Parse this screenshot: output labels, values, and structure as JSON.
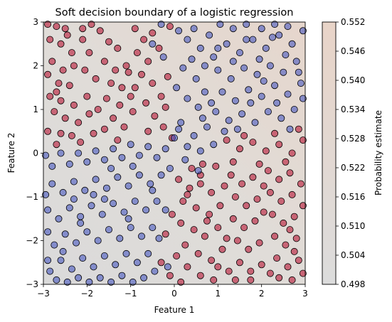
{
  "chart_data": {
    "type": "scatter",
    "title": "Soft decision boundary of a logistic regression",
    "xlabel": "Feature 1",
    "ylabel": "Feature 2",
    "xlim": [
      -3,
      3
    ],
    "ylim": [
      -3,
      3
    ],
    "xticks": [
      -3,
      -2,
      -1,
      0,
      1,
      2,
      3
    ],
    "xtick_labels": [
      "−3",
      "−2",
      "−1",
      "0",
      "1",
      "2",
      "3"
    ],
    "yticks": [
      -3,
      -2,
      -1,
      0,
      1,
      2,
      3
    ],
    "ytick_labels": [
      "−3",
      "−2",
      "−1",
      "0",
      "1",
      "2",
      "3"
    ],
    "grid": false,
    "background": {
      "type": "probability-gradient",
      "low_color": "#dcdcdc",
      "high_color": "#e8d4c8",
      "pmin": 0.498,
      "pmax": 0.552
    },
    "colorbar": {
      "label": "Probability estimate",
      "min": 0.498,
      "max": 0.552,
      "ticks": [
        0.498,
        0.504,
        0.51,
        0.516,
        0.522,
        0.528,
        0.534,
        0.54,
        0.546,
        0.552
      ],
      "tick_labels": [
        "0.498",
        "0.504",
        "0.510",
        "0.516",
        "0.522",
        "0.528",
        "0.534",
        "0.540",
        "0.546",
        "0.552"
      ]
    },
    "classes": [
      {
        "color": "#b40426",
        "edge_color": "#000000"
      },
      {
        "color": "#3b4cc0",
        "edge_color": "#000000"
      }
    ],
    "points": [
      [
        -2.9,
        2.95,
        0
      ],
      [
        -2.7,
        2.9,
        0
      ],
      [
        -2.5,
        2.85,
        0
      ],
      [
        -2.85,
        2.6,
        0
      ],
      [
        -2.6,
        2.5,
        0
      ],
      [
        -2.35,
        2.3,
        0
      ],
      [
        -2.8,
        2.1,
        0
      ],
      [
        -2.55,
        1.9,
        0
      ],
      [
        -2.3,
        2.0,
        0
      ],
      [
        -2.9,
        1.8,
        0
      ],
      [
        -2.65,
        1.6,
        0
      ],
      [
        -2.4,
        1.55,
        0
      ],
      [
        -2.85,
        1.3,
        0
      ],
      [
        -2.6,
        1.2,
        0
      ],
      [
        -2.3,
        1.1,
        0
      ],
      [
        -2.75,
        0.95,
        0
      ],
      [
        -2.5,
        0.8,
        0
      ],
      [
        -2.2,
        0.7,
        0
      ],
      [
        -2.9,
        0.5,
        0
      ],
      [
        -2.6,
        0.45,
        0
      ],
      [
        -2.35,
        0.4,
        0
      ],
      [
        -2.1,
        2.6,
        0
      ],
      [
        -1.95,
        2.3,
        0
      ],
      [
        -2.05,
        1.9,
        0
      ],
      [
        -1.8,
        1.7,
        0
      ],
      [
        -2.0,
        1.3,
        0
      ],
      [
        -1.75,
        1.0,
        0
      ],
      [
        -1.95,
        0.9,
        0
      ],
      [
        -1.7,
        2.8,
        0
      ],
      [
        -1.5,
        2.55,
        0
      ],
      [
        -1.3,
        2.4,
        0
      ],
      [
        -1.6,
        2.1,
        0
      ],
      [
        -1.35,
        1.9,
        0
      ],
      [
        -1.1,
        2.0,
        0
      ],
      [
        -1.45,
        1.6,
        0
      ],
      [
        -1.2,
        1.5,
        0
      ],
      [
        -1.55,
        1.25,
        0
      ],
      [
        -1.25,
        1.1,
        0
      ],
      [
        -1.0,
        1.3,
        0
      ],
      [
        -1.4,
        0.8,
        0
      ],
      [
        -1.15,
        0.6,
        0
      ],
      [
        -1.6,
        0.55,
        0
      ],
      [
        -0.9,
        2.85,
        0
      ],
      [
        -0.7,
        2.6,
        0
      ],
      [
        -0.5,
        2.75,
        0
      ],
      [
        -0.85,
        2.3,
        0
      ],
      [
        -0.6,
        2.1,
        0
      ],
      [
        -0.35,
        2.4,
        0
      ],
      [
        -0.75,
        1.8,
        0
      ],
      [
        -0.5,
        1.6,
        0
      ],
      [
        -0.9,
        1.5,
        0
      ],
      [
        -0.3,
        1.3,
        0
      ],
      [
        -0.65,
        1.15,
        0
      ],
      [
        -0.2,
        1.05,
        0
      ],
      [
        -0.45,
        0.85,
        0
      ],
      [
        -2.1,
        2.85,
        0
      ],
      [
        -1.9,
        2.95,
        0
      ],
      [
        -0.1,
        2.9,
        0
      ],
      [
        -0.15,
        1.75,
        0
      ],
      [
        -0.95,
        0.95,
        0
      ],
      [
        -2.45,
        2.7,
        0
      ],
      [
        -2.7,
        1.4,
        0
      ],
      [
        -1.85,
        0.45,
        0
      ],
      [
        -0.6,
        0.5,
        0
      ],
      [
        -1.3,
        0.3,
        0
      ],
      [
        -2.15,
        0.25,
        0
      ],
      [
        -2.7,
        0.2,
        0
      ],
      [
        -0.05,
        0.35,
        0
      ],
      [
        -0.25,
        0.6,
        0
      ],
      [
        -1.05,
        1.85,
        0
      ],
      [
        0.1,
        -0.6,
        0
      ],
      [
        0.35,
        -0.8,
        0
      ],
      [
        0.6,
        -0.7,
        0
      ],
      [
        0.85,
        -0.9,
        0
      ],
      [
        0.2,
        -1.1,
        0
      ],
      [
        0.5,
        -1.25,
        0
      ],
      [
        0.8,
        -1.4,
        0
      ],
      [
        1.05,
        -1.2,
        0
      ],
      [
        0.15,
        -1.6,
        0
      ],
      [
        0.45,
        -1.75,
        0
      ],
      [
        0.7,
        -1.9,
        0
      ],
      [
        1.0,
        -1.7,
        0
      ],
      [
        0.25,
        -2.1,
        0
      ],
      [
        0.55,
        -2.3,
        0
      ],
      [
        0.85,
        -2.45,
        0
      ],
      [
        1.1,
        -2.2,
        0
      ],
      [
        0.3,
        -2.6,
        0
      ],
      [
        0.6,
        -2.8,
        0
      ],
      [
        0.9,
        -2.9,
        0
      ],
      [
        1.25,
        -2.7,
        0
      ],
      [
        1.3,
        -0.5,
        0
      ],
      [
        1.55,
        -0.7,
        0
      ],
      [
        1.8,
        -0.55,
        0
      ],
      [
        1.4,
        -1.0,
        0
      ],
      [
        1.65,
        -1.2,
        0
      ],
      [
        1.9,
        -1.05,
        0
      ],
      [
        1.35,
        -1.5,
        0
      ],
      [
        1.6,
        -1.7,
        0
      ],
      [
        1.85,
        -1.55,
        0
      ],
      [
        1.45,
        -2.0,
        0
      ],
      [
        1.7,
        -2.2,
        0
      ],
      [
        1.95,
        -2.05,
        0
      ],
      [
        1.5,
        -2.5,
        0
      ],
      [
        1.75,
        -2.7,
        0
      ],
      [
        2.0,
        -2.55,
        0
      ],
      [
        2.15,
        -0.4,
        0
      ],
      [
        2.4,
        -0.6,
        0
      ],
      [
        2.65,
        -0.45,
        0
      ],
      [
        2.9,
        -0.7,
        0
      ],
      [
        2.2,
        -0.9,
        0
      ],
      [
        2.45,
        -1.1,
        0
      ],
      [
        2.7,
        -0.95,
        0
      ],
      [
        2.95,
        -1.2,
        0
      ],
      [
        2.25,
        -1.4,
        0
      ],
      [
        2.5,
        -1.6,
        0
      ],
      [
        2.75,
        -1.45,
        0
      ],
      [
        2.3,
        -1.9,
        0
      ],
      [
        2.55,
        -2.1,
        0
      ],
      [
        2.8,
        -1.95,
        0
      ],
      [
        2.35,
        -2.4,
        0
      ],
      [
        2.6,
        -2.6,
        0
      ],
      [
        2.85,
        -2.45,
        0
      ],
      [
        2.4,
        -2.85,
        0
      ],
      [
        2.7,
        -2.9,
        0
      ],
      [
        2.95,
        -2.75,
        0
      ],
      [
        1.2,
        0.3,
        0
      ],
      [
        1.5,
        0.1,
        0
      ],
      [
        1.8,
        0.25,
        0
      ],
      [
        2.1,
        0.05,
        0
      ],
      [
        2.4,
        0.2,
        0
      ],
      [
        2.7,
        0.0,
        0
      ],
      [
        2.95,
        0.3,
        0
      ],
      [
        1.35,
        -0.2,
        0
      ],
      [
        1.95,
        -0.25,
        0
      ],
      [
        2.55,
        -0.2,
        0
      ],
      [
        0.95,
        -0.3,
        0
      ],
      [
        0.65,
        -0.25,
        0
      ],
      [
        0.4,
        -0.35,
        0
      ],
      [
        0.05,
        -2.35,
        0
      ],
      [
        -0.1,
        -2.8,
        0
      ],
      [
        -0.3,
        -2.5,
        0
      ],
      [
        -0.2,
        -1.85,
        0
      ],
      [
        -0.05,
        -1.4,
        0
      ],
      [
        1.15,
        -0.75,
        0
      ],
      [
        2.05,
        -1.35,
        0
      ],
      [
        2.2,
        -2.75,
        0
      ],
      [
        1.0,
        -2.6,
        0
      ],
      [
        0.75,
        -1.55,
        0
      ],
      [
        0.3,
        -0.95,
        0
      ],
      [
        1.6,
        0.4,
        0
      ],
      [
        2.85,
        0.55,
        0
      ],
      [
        2.3,
        0.45,
        0
      ],
      [
        1.75,
        -2.9,
        0
      ],
      [
        1.4,
        -2.9,
        0
      ],
      [
        0.15,
        -2.95,
        0
      ],
      [
        2.65,
        -1.75,
        0
      ],
      [
        1.2,
        -1.95,
        0
      ],
      [
        0.6,
        -0.5,
        0
      ],
      [
        2.05,
        -0.75,
        0
      ],
      [
        2.75,
        -2.25,
        0
      ],
      [
        0.9,
        2.2,
        1
      ],
      [
        1.2,
        2.5,
        1
      ],
      [
        1.5,
        2.3,
        1
      ],
      [
        1.8,
        2.6,
        1
      ],
      [
        2.1,
        2.4,
        1
      ],
      [
        2.4,
        2.7,
        1
      ],
      [
        2.7,
        2.5,
        1
      ],
      [
        2.95,
        2.8,
        1
      ],
      [
        1.0,
        1.9,
        1
      ],
      [
        1.3,
        1.7,
        1
      ],
      [
        1.6,
        1.95,
        1
      ],
      [
        1.9,
        1.8,
        1
      ],
      [
        2.2,
        2.0,
        1
      ],
      [
        2.5,
        1.85,
        1
      ],
      [
        2.8,
        2.1,
        1
      ],
      [
        1.1,
        1.4,
        1
      ],
      [
        1.4,
        1.2,
        1
      ],
      [
        1.7,
        1.45,
        1
      ],
      [
        2.0,
        1.3,
        1
      ],
      [
        2.3,
        1.55,
        1
      ],
      [
        2.6,
        1.35,
        1
      ],
      [
        2.9,
        1.6,
        1
      ],
      [
        0.95,
        0.95,
        1
      ],
      [
        1.25,
        0.75,
        1
      ],
      [
        1.55,
        0.9,
        1
      ],
      [
        1.85,
        0.7,
        1
      ],
      [
        2.15,
        0.95,
        1
      ],
      [
        2.45,
        0.8,
        1
      ],
      [
        2.75,
        1.0,
        1
      ],
      [
        0.7,
        1.4,
        1
      ],
      [
        0.5,
        1.7,
        1
      ],
      [
        0.8,
        2.7,
        1
      ],
      [
        1.05,
        2.95,
        1
      ],
      [
        1.35,
        2.85,
        1
      ],
      [
        1.65,
        2.95,
        1
      ],
      [
        2.0,
        2.85,
        1
      ],
      [
        2.3,
        2.95,
        1
      ],
      [
        2.6,
        2.9,
        1
      ],
      [
        0.6,
        2.4,
        1
      ],
      [
        0.3,
        2.6,
        1
      ],
      [
        0.1,
        2.8,
        1
      ],
      [
        0.4,
        2.15,
        1
      ],
      [
        0.2,
        1.95,
        1
      ],
      [
        0.55,
        1.05,
        1
      ],
      [
        0.3,
        1.25,
        1
      ],
      [
        0.05,
        1.5,
        1
      ],
      [
        0.75,
        0.6,
        1
      ],
      [
        0.45,
        0.4,
        1
      ],
      [
        0.15,
        0.7,
        1
      ],
      [
        0.9,
        0.2,
        1
      ],
      [
        0.6,
        0.05,
        1
      ],
      [
        0.3,
        0.15,
        1
      ],
      [
        0.0,
        0.35,
        1
      ],
      [
        -0.2,
        0.1,
        1
      ],
      [
        -0.4,
        -0.1,
        1
      ],
      [
        -0.6,
        0.15,
        1
      ],
      [
        -0.8,
        -0.05,
        1
      ],
      [
        -1.0,
        0.2,
        1
      ],
      [
        -1.2,
        -0.1,
        1
      ],
      [
        -1.4,
        0.1,
        1
      ],
      [
        -1.6,
        -0.15,
        1
      ],
      [
        -1.8,
        0.05,
        1
      ],
      [
        -2.0,
        -0.2,
        1
      ],
      [
        -2.2,
        0.0,
        1
      ],
      [
        -2.4,
        -0.25,
        1
      ],
      [
        -2.6,
        0.0,
        1
      ],
      [
        -2.8,
        -0.3,
        1
      ],
      [
        -0.3,
        -0.5,
        1
      ],
      [
        -0.55,
        -0.7,
        1
      ],
      [
        -0.8,
        -0.5,
        1
      ],
      [
        -1.05,
        -0.75,
        1
      ],
      [
        -1.3,
        -0.55,
        1
      ],
      [
        -1.55,
        -0.8,
        1
      ],
      [
        -1.8,
        -0.6,
        1
      ],
      [
        -2.05,
        -0.85,
        1
      ],
      [
        -2.3,
        -0.65,
        1
      ],
      [
        -2.55,
        -0.9,
        1
      ],
      [
        -2.8,
        -0.7,
        1
      ],
      [
        -0.4,
        -1.1,
        1
      ],
      [
        -0.65,
        -1.3,
        1
      ],
      [
        -0.9,
        -1.1,
        1
      ],
      [
        -1.15,
        -1.35,
        1
      ],
      [
        -1.4,
        -1.15,
        1
      ],
      [
        -1.65,
        -1.4,
        1
      ],
      [
        -1.9,
        -1.2,
        1
      ],
      [
        -2.15,
        -1.45,
        1
      ],
      [
        -2.4,
        -1.25,
        1
      ],
      [
        -2.65,
        -1.5,
        1
      ],
      [
        -2.9,
        -1.3,
        1
      ],
      [
        -0.5,
        -1.7,
        1
      ],
      [
        -0.75,
        -1.9,
        1
      ],
      [
        -1.0,
        -1.7,
        1
      ],
      [
        -1.25,
        -1.95,
        1
      ],
      [
        -1.5,
        -1.75,
        1
      ],
      [
        -1.75,
        -2.0,
        1
      ],
      [
        -2.0,
        -1.8,
        1
      ],
      [
        -2.25,
        -2.05,
        1
      ],
      [
        -2.5,
        -1.85,
        1
      ],
      [
        -2.75,
        -2.1,
        1
      ],
      [
        -0.6,
        -2.3,
        1
      ],
      [
        -0.85,
        -2.5,
        1
      ],
      [
        -1.1,
        -2.3,
        1
      ],
      [
        -1.35,
        -2.55,
        1
      ],
      [
        -1.6,
        -2.35,
        1
      ],
      [
        -1.85,
        -2.6,
        1
      ],
      [
        -2.1,
        -2.4,
        1
      ],
      [
        -2.35,
        -2.65,
        1
      ],
      [
        -2.6,
        -2.45,
        1
      ],
      [
        -2.85,
        -2.7,
        1
      ],
      [
        -0.7,
        -2.85,
        1
      ],
      [
        -0.95,
        -2.95,
        1
      ],
      [
        -1.2,
        -2.8,
        1
      ],
      [
        -1.45,
        -2.95,
        1
      ],
      [
        -1.7,
        -2.85,
        1
      ],
      [
        -1.95,
        -2.95,
        1
      ],
      [
        -2.2,
        -2.85,
        1
      ],
      [
        -2.45,
        -2.95,
        1
      ],
      [
        -2.7,
        -2.9,
        1
      ],
      [
        -2.9,
        -2.45,
        1
      ],
      [
        -2.95,
        -0.05,
        1
      ],
      [
        0.25,
        -0.15,
        1
      ],
      [
        0.55,
        -0.4,
        1
      ],
      [
        -0.1,
        -0.35,
        1
      ],
      [
        0.1,
        0.55,
        1
      ],
      [
        0.65,
        0.8,
        1
      ],
      [
        0.85,
        1.15,
        1
      ],
      [
        1.15,
        0.5,
        1
      ],
      [
        1.45,
        0.55,
        1
      ],
      [
        1.75,
        1.15,
        1
      ],
      [
        2.05,
        1.65,
        1
      ],
      [
        2.35,
        1.15,
        1
      ],
      [
        2.65,
        0.55,
        1
      ],
      [
        2.95,
        1.25,
        1
      ],
      [
        2.85,
        1.85,
        1
      ],
      [
        2.55,
        2.25,
        1
      ],
      [
        2.25,
        2.65,
        1
      ],
      [
        1.95,
        2.15,
        1
      ],
      [
        1.65,
        2.6,
        1
      ],
      [
        1.35,
        2.1,
        1
      ],
      [
        1.0,
        2.4,
        1
      ],
      [
        0.7,
        2.0,
        1
      ],
      [
        0.45,
        2.85,
        1
      ],
      [
        -0.3,
        2.95,
        1
      ],
      [
        -0.5,
        2.5,
        1
      ],
      [
        -0.25,
        2.2,
        1
      ],
      [
        -2.95,
        -0.95,
        1
      ],
      [
        -2.9,
        -1.8,
        1
      ],
      [
        -2.55,
        -2.25,
        1
      ],
      [
        -2.15,
        -1.6,
        1
      ],
      [
        -1.85,
        -0.95,
        1
      ],
      [
        -1.45,
        -0.35,
        1
      ],
      [
        -0.95,
        -0.3,
        1
      ],
      [
        -0.5,
        -0.85,
        1
      ],
      [
        -0.2,
        -1.3,
        1
      ],
      [
        -0.35,
        -1.95,
        1
      ],
      [
        -0.45,
        -2.7,
        1
      ],
      [
        -0.15,
        -2.6,
        1
      ],
      [
        -1.05,
        -1.5,
        1
      ],
      [
        -1.6,
        -1.05,
        1
      ],
      [
        -2.3,
        -1.05,
        1
      ]
    ]
  }
}
